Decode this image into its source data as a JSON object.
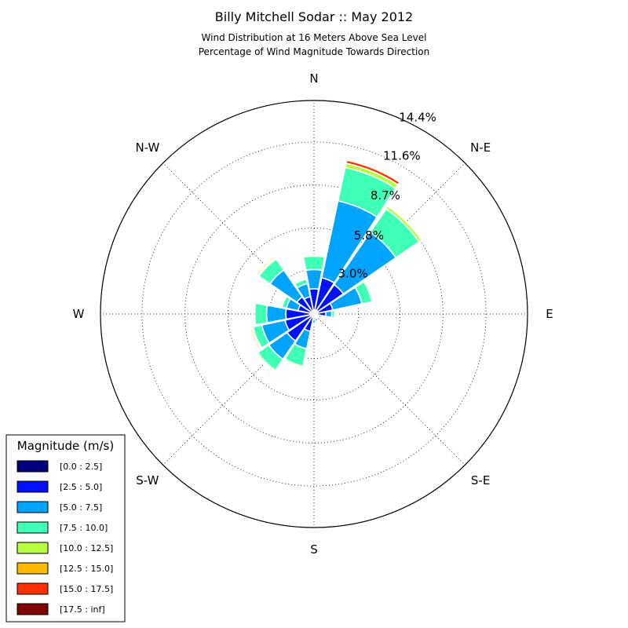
{
  "chart_data": {
    "type": "windrose",
    "title": "Billy Mitchell Sodar :: May 2012",
    "subtitle_lines": [
      "Wind Distribution at 16 Meters Above Sea Level",
      "Percentage of Wind Magnitude Towards Direction"
    ],
    "directions": [
      "N",
      "NNE",
      "NE",
      "ENE",
      "E",
      "ESE",
      "SE",
      "SSE",
      "S",
      "SSW",
      "SW",
      "WSW",
      "W",
      "WNW",
      "NW",
      "NNW"
    ],
    "direction_labels": [
      "N",
      "N-E",
      "E",
      "S-E",
      "S",
      "S-W",
      "W",
      "N-W"
    ],
    "radial_ticks": [
      "3.0%",
      "5.8%",
      "8.7%",
      "11.6%",
      "14.4%"
    ],
    "radial_tick_values": [
      3.0,
      5.8,
      8.7,
      11.6,
      14.4
    ],
    "rmax": 14.4,
    "grid": true,
    "legend": {
      "title": "Magnitude (m/s)",
      "placement": "bottom-left",
      "entries": [
        "[0.0 : 2.5]",
        "[2.5 : 5.0]",
        "[5.0 : 7.5]",
        "[7.5 : 10.0]",
        "[10.0 : 12.5]",
        "[12.5 : 15.0]",
        "[15.0 : 17.5]",
        "[17.5 : inf]"
      ]
    },
    "bin_colors": [
      "#00007f",
      "#0010ff",
      "#00a4ff",
      "#40ffb6",
      "#b6ff40",
      "#ffb900",
      "#ff3000",
      "#7f0000"
    ],
    "series_cumulative": [
      [
        0.2,
        1.7,
        3.0,
        3.9,
        4.0,
        4.0,
        4.0,
        4.0
      ],
      [
        0.3,
        2.5,
        7.8,
        10.1,
        10.4,
        10.4,
        10.6,
        10.6
      ],
      [
        0.3,
        2.4,
        6.7,
        8.6,
        8.8,
        8.8,
        8.8,
        8.8
      ],
      [
        0.3,
        1.3,
        3.3,
        4.0,
        4.1,
        4.1,
        4.1,
        4.1
      ],
      [
        0.2,
        0.8,
        1.2,
        1.4,
        1.5,
        1.5,
        1.5,
        1.5
      ],
      [
        0.2,
        0.35,
        0.5,
        0.6,
        0.62,
        0.62,
        0.62,
        0.62
      ],
      [
        0.1,
        0.2,
        0.3,
        0.35,
        0.35,
        0.35,
        0.35,
        0.35
      ],
      [
        0.1,
        0.3,
        0.5,
        0.6,
        0.65,
        0.65,
        0.65,
        0.65
      ],
      [
        0.2,
        0.4,
        0.6,
        0.7,
        0.75,
        0.75,
        0.75,
        0.75
      ],
      [
        0.2,
        1.2,
        2.4,
        3.6,
        3.7,
        3.7,
        3.7,
        3.7
      ],
      [
        0.2,
        2.2,
        3.7,
        4.6,
        4.7,
        4.7,
        4.7,
        4.7
      ],
      [
        0.2,
        2.0,
        3.6,
        4.2,
        4.3,
        4.4,
        4.4,
        4.4
      ],
      [
        0.2,
        1.9,
        3.2,
        4.0,
        4.0,
        4.0,
        4.0,
        4.0
      ],
      [
        0.2,
        1.1,
        1.9,
        2.2,
        2.2,
        2.2,
        2.2,
        2.2
      ],
      [
        0.2,
        1.4,
        3.6,
        4.5,
        4.6,
        4.7,
        4.7,
        4.7
      ],
      [
        0.2,
        1.2,
        2.1,
        2.4,
        2.4,
        2.4,
        2.4,
        2.4
      ]
    ]
  }
}
